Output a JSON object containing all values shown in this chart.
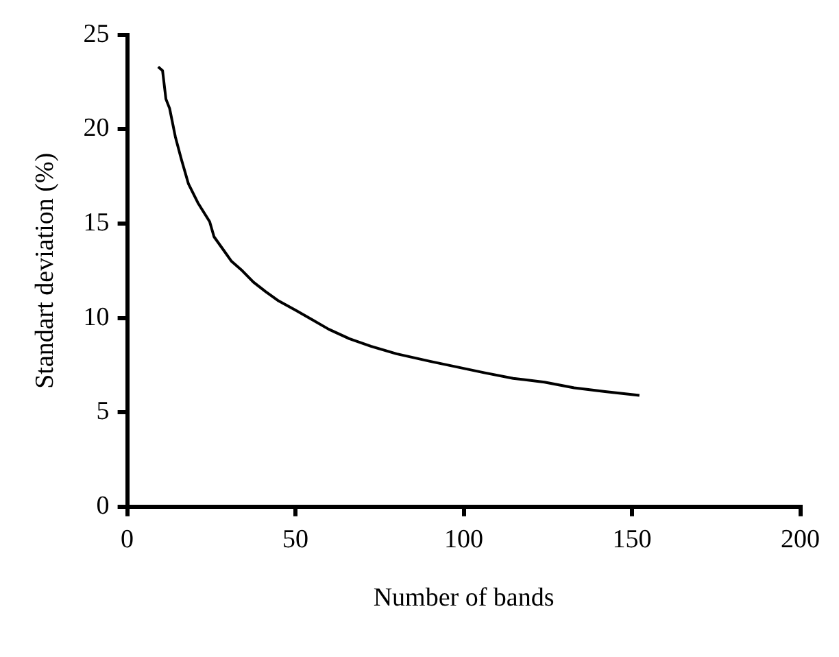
{
  "chart_data": {
    "type": "line",
    "xlabel": "Number of bands",
    "ylabel": "Standart deviation (%)",
    "xlim": [
      0,
      200
    ],
    "xticks": [
      0,
      50,
      100,
      150,
      200
    ],
    "ylim": [
      0,
      25
    ],
    "yticks": [
      0,
      5,
      10,
      15,
      20,
      25
    ],
    "grid": false,
    "marker": "none",
    "line_style": "solid",
    "series": [
      {
        "color": "#000000",
        "x": [
          9.2,
          10.5,
          11.5,
          12.6,
          14.3,
          16.1,
          18.2,
          21,
          24.5,
          25.8,
          28.6,
          31,
          34.2,
          37.5,
          41.1,
          45,
          50.1,
          55,
          59.9,
          66,
          72.4,
          80,
          85,
          90,
          98,
          106,
          114.7,
          124,
          132.8,
          142,
          152.2
        ],
        "values": [
          23.3,
          23.1,
          21.6,
          21.1,
          19.6,
          18.4,
          17.1,
          16.1,
          15.1,
          14.3,
          13.6,
          13,
          12.5,
          11.9,
          11.4,
          10.9,
          10.4,
          9.9,
          9.4,
          8.9,
          8.5,
          8.1,
          7.9,
          7.7,
          7.4,
          7.1,
          6.8,
          6.6,
          6.3,
          6.1,
          5.9
        ]
      }
    ]
  }
}
